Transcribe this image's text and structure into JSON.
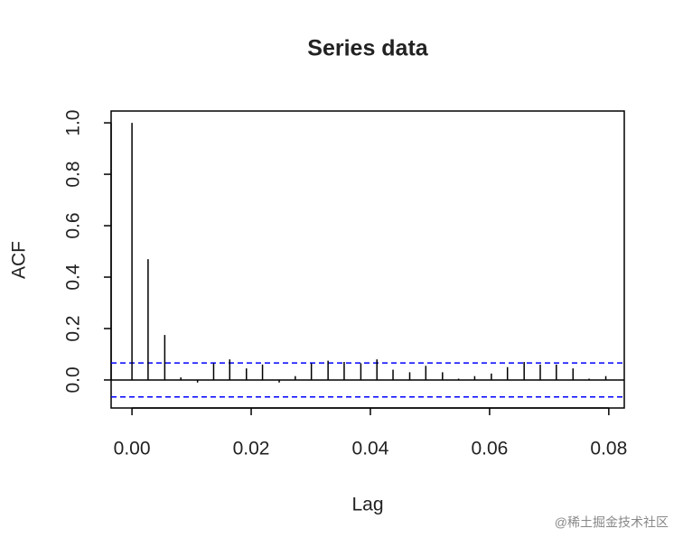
{
  "chart_data": {
    "type": "acf",
    "title": "Series  data",
    "x_label": "Lag",
    "y_label": "ACF",
    "x": [
      0,
      0.0027,
      0.0055,
      0.0082,
      0.011,
      0.0137,
      0.0164,
      0.0192,
      0.0219,
      0.0247,
      0.0274,
      0.0301,
      0.0329,
      0.0356,
      0.0384,
      0.0411,
      0.0438,
      0.0466,
      0.0493,
      0.0521,
      0.0548,
      0.0575,
      0.0603,
      0.063,
      0.0658,
      0.0685,
      0.0712,
      0.074,
      0.0767,
      0.0795
    ],
    "values": [
      1.0,
      0.47,
      0.175,
      0.01,
      -0.01,
      0.065,
      0.08,
      0.045,
      0.06,
      -0.01,
      0.015,
      0.065,
      0.075,
      0.07,
      0.065,
      0.08,
      0.04,
      0.03,
      0.055,
      0.03,
      0.005,
      0.015,
      0.025,
      0.05,
      0.07,
      0.06,
      0.06,
      0.045,
      0.005,
      0.015
    ],
    "color": "#000000",
    "ci": [
      -0.066,
      0.066
    ],
    "ci_color": "#0000ff",
    "xlim": [
      -0.0035,
      0.0826
    ],
    "ylim": [
      -0.109,
      1.046
    ],
    "xticks": [
      {
        "value": 0,
        "label": "0.00"
      },
      {
        "value": 0.02,
        "label": "0.02"
      },
      {
        "value": 0.04,
        "label": "0.04"
      },
      {
        "value": 0.06,
        "label": "0.06"
      },
      {
        "value": 0.08,
        "label": "0.08"
      }
    ],
    "yticks": [
      {
        "value": 0,
        "label": "0.0"
      },
      {
        "value": 0.2,
        "label": "0.2"
      },
      {
        "value": 0.4,
        "label": "0.4"
      },
      {
        "value": 0.6,
        "label": "0.6"
      },
      {
        "value": 0.8,
        "label": "0.8"
      },
      {
        "value": 1,
        "label": "1.0"
      }
    ]
  },
  "watermark": "@稀土掘金技术社区"
}
